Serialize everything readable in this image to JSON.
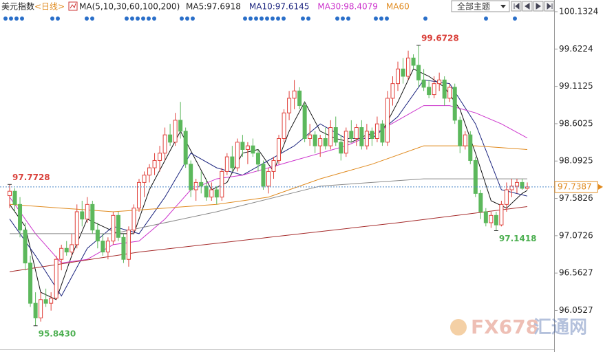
{
  "chart_data": {
    "type": "candlestick",
    "title": "美元指数",
    "period": "<日线>",
    "indicator": "MA(5,10,30,60,100,200)",
    "theme_select": "全部主题",
    "watermark": [
      "FX678",
      "汇通网"
    ],
    "ylim": [
      95.522,
      100.292
    ],
    "yticks": [
      100.1324,
      99.6224,
      99.1125,
      98.6025,
      98.0925,
      97.5826,
      97.0726,
      96.5627,
      96.0527
    ],
    "up_color": "#e0403a",
    "down_color": "#5cb85c",
    "current_price": 97.7387,
    "annotations": [
      {
        "value": 99.6728,
        "field": "high",
        "color": "#d9413b"
      },
      {
        "value": 97.7728,
        "field": "high",
        "color": "#d9413b"
      },
      {
        "value": 97.1418,
        "field": "low",
        "color": "#4caf50"
      },
      {
        "value": 95.843,
        "label": "95.8430",
        "field": "low",
        "color": "#4caf50"
      }
    ],
    "candles": [
      [
        97.62,
        97.7728,
        97.45,
        97.68
      ],
      [
        97.68,
        97.72,
        97.4,
        97.5
      ],
      [
        97.5,
        97.6,
        97.05,
        97.15
      ],
      [
        97.15,
        97.25,
        96.6,
        96.7
      ],
      [
        96.7,
        96.8,
        96.1,
        96.15
      ],
      [
        96.15,
        96.3,
        95.843,
        95.95
      ],
      [
        95.95,
        96.3,
        95.9,
        96.2
      ],
      [
        96.2,
        96.35,
        96.1,
        96.15
      ],
      [
        96.15,
        96.3,
        96.05,
        96.22
      ],
      [
        96.22,
        96.8,
        96.2,
        96.75
      ],
      [
        96.75,
        96.95,
        96.6,
        96.9
      ],
      [
        96.9,
        97.0,
        96.8,
        96.85
      ],
      [
        96.85,
        97.1,
        96.8,
        96.95
      ],
      [
        96.95,
        97.5,
        96.9,
        97.4
      ],
      [
        97.4,
        97.55,
        97.2,
        97.3
      ],
      [
        97.3,
        97.6,
        97.25,
        97.5
      ],
      [
        97.5,
        97.55,
        97.1,
        97.15
      ],
      [
        97.15,
        97.25,
        96.9,
        97.0
      ],
      [
        97.0,
        97.1,
        96.8,
        96.85
      ],
      [
        96.85,
        97.05,
        96.75,
        97.0
      ],
      [
        97.0,
        97.4,
        96.95,
        97.35
      ],
      [
        97.35,
        97.4,
        97.0,
        97.05
      ],
      [
        97.05,
        97.1,
        96.7,
        96.75
      ],
      [
        96.75,
        97.2,
        96.65,
        97.15
      ],
      [
        97.15,
        97.5,
        97.1,
        97.45
      ],
      [
        97.45,
        97.85,
        97.4,
        97.8
      ],
      [
        97.8,
        97.95,
        97.6,
        97.9
      ],
      [
        97.9,
        98.05,
        97.8,
        98.0
      ],
      [
        98.0,
        98.2,
        97.9,
        98.1
      ],
      [
        98.1,
        98.3,
        97.95,
        98.2
      ],
      [
        98.2,
        98.55,
        98.1,
        98.45
      ],
      [
        98.45,
        98.6,
        98.3,
        98.35
      ],
      [
        98.35,
        98.75,
        98.3,
        98.65
      ],
      [
        98.65,
        98.9,
        98.4,
        98.5
      ],
      [
        98.5,
        98.55,
        98.0,
        98.05
      ],
      [
        98.05,
        98.1,
        97.6,
        97.7
      ],
      [
        97.7,
        97.85,
        97.55,
        97.8
      ],
      [
        97.8,
        97.95,
        97.65,
        97.75
      ],
      [
        97.75,
        97.85,
        97.55,
        97.6
      ],
      [
        97.6,
        97.8,
        97.55,
        97.7
      ],
      [
        97.7,
        97.75,
        97.5,
        97.6
      ],
      [
        97.6,
        98.0,
        97.55,
        97.95
      ],
      [
        97.95,
        98.2,
        97.9,
        98.15
      ],
      [
        98.15,
        98.3,
        97.95,
        98.0
      ],
      [
        98.0,
        98.4,
        97.95,
        98.35
      ],
      [
        98.35,
        98.45,
        98.15,
        98.25
      ],
      [
        98.25,
        98.35,
        98.05,
        98.3
      ],
      [
        98.3,
        98.4,
        98.15,
        98.2
      ],
      [
        98.2,
        98.25,
        97.95,
        98.05
      ],
      [
        98.05,
        98.1,
        97.7,
        97.75
      ],
      [
        97.75,
        98.0,
        97.65,
        97.95
      ],
      [
        97.95,
        98.15,
        97.85,
        98.1
      ],
      [
        98.1,
        98.45,
        98.05,
        98.4
      ],
      [
        98.4,
        98.8,
        98.35,
        98.75
      ],
      [
        98.75,
        99.05,
        98.65,
        98.95
      ],
      [
        98.95,
        99.2,
        98.8,
        99.05
      ],
      [
        99.05,
        99.1,
        98.8,
        98.85
      ],
      [
        98.85,
        98.9,
        98.35,
        98.4
      ],
      [
        98.4,
        98.6,
        98.3,
        98.45
      ],
      [
        98.45,
        98.5,
        98.2,
        98.3
      ],
      [
        98.3,
        98.45,
        98.15,
        98.4
      ],
      [
        98.4,
        98.55,
        98.25,
        98.3
      ],
      [
        98.3,
        98.65,
        98.25,
        98.55
      ],
      [
        98.55,
        98.7,
        98.3,
        98.35
      ],
      [
        98.35,
        98.45,
        98.1,
        98.2
      ],
      [
        98.2,
        98.55,
        98.15,
        98.5
      ],
      [
        98.5,
        98.65,
        98.35,
        98.4
      ],
      [
        98.4,
        98.6,
        98.3,
        98.55
      ],
      [
        98.55,
        98.65,
        98.25,
        98.3
      ],
      [
        98.3,
        98.6,
        98.25,
        98.5
      ],
      [
        98.5,
        98.55,
        98.3,
        98.4
      ],
      [
        98.4,
        98.7,
        98.35,
        98.6
      ],
      [
        98.6,
        98.65,
        98.3,
        98.35
      ],
      [
        98.35,
        99.05,
        98.3,
        98.95
      ],
      [
        98.95,
        99.25,
        98.85,
        99.15
      ],
      [
        99.15,
        99.45,
        99.05,
        99.35
      ],
      [
        99.35,
        99.5,
        99.15,
        99.25
      ],
      [
        99.25,
        99.6,
        99.2,
        99.5
      ],
      [
        99.5,
        99.55,
        99.35,
        99.4
      ],
      [
        99.4,
        99.6728,
        99.1,
        99.2
      ],
      [
        99.2,
        99.35,
        99.05,
        99.1
      ],
      [
        99.1,
        99.2,
        98.95,
        99.0
      ],
      [
        99.0,
        99.25,
        98.95,
        99.15
      ],
      [
        99.15,
        99.3,
        99.05,
        99.2
      ],
      [
        99.2,
        99.25,
        98.85,
        98.95
      ],
      [
        98.95,
        99.15,
        98.9,
        99.1
      ],
      [
        99.1,
        99.15,
        98.6,
        98.65
      ],
      [
        98.65,
        98.7,
        98.2,
        98.3
      ],
      [
        98.3,
        98.5,
        98.25,
        98.45
      ],
      [
        98.45,
        98.5,
        98.05,
        98.1
      ],
      [
        98.1,
        98.15,
        97.6,
        97.65
      ],
      [
        97.65,
        97.7,
        97.3,
        97.4
      ],
      [
        97.4,
        97.45,
        97.2,
        97.25
      ],
      [
        97.25,
        97.4,
        97.18,
        97.35
      ],
      [
        97.35,
        97.4,
        97.1418,
        97.22
      ],
      [
        97.22,
        97.55,
        97.2,
        97.5
      ],
      [
        97.5,
        97.8,
        97.4,
        97.7
      ],
      [
        97.7,
        97.85,
        97.6,
        97.75
      ],
      [
        97.75,
        97.85,
        97.65,
        97.8
      ],
      [
        97.8,
        97.85,
        97.7,
        97.72
      ],
      [
        97.72,
        97.8,
        97.7,
        97.7387
      ]
    ],
    "ma": [
      {
        "name": "MA5",
        "legend": "MA5:97.6918",
        "color": "#111111",
        "x": [
          0,
          3,
          6,
          9,
          12,
          15,
          18,
          21,
          24,
          27,
          30,
          33,
          36,
          39,
          42,
          45,
          48,
          51,
          54,
          57,
          60,
          63,
          66,
          69,
          72,
          75,
          78,
          81,
          84,
          87,
          90,
          93,
          96,
          99,
          100
        ],
        "values": [
          97.5,
          97.2,
          96.3,
          96.2,
          96.8,
          97.3,
          97.2,
          97.1,
          97.1,
          97.7,
          98.1,
          98.5,
          98.1,
          97.7,
          97.8,
          98.2,
          98.25,
          97.95,
          98.5,
          98.9,
          98.5,
          98.4,
          98.35,
          98.45,
          98.5,
          98.9,
          99.35,
          99.25,
          99.1,
          98.8,
          98.2,
          97.55,
          97.45,
          97.65,
          97.6918
        ]
      },
      {
        "name": "MA10",
        "legend": "MA10:97.6145",
        "color": "#1a237e",
        "x": [
          0,
          5,
          10,
          15,
          20,
          25,
          30,
          35,
          40,
          45,
          50,
          55,
          60,
          65,
          70,
          75,
          80,
          85,
          90,
          95,
          100
        ],
        "values": [
          97.3,
          96.8,
          96.25,
          96.9,
          97.2,
          97.1,
          97.6,
          98.2,
          98.0,
          97.9,
          98.1,
          98.3,
          98.6,
          98.4,
          98.4,
          98.7,
          99.2,
          99.15,
          98.6,
          97.7,
          97.6145
        ]
      },
      {
        "name": "MA30",
        "legend": "MA30:98.4079",
        "color": "#cc33cc",
        "x": [
          0,
          5,
          10,
          15,
          20,
          25,
          30,
          35,
          40,
          45,
          50,
          55,
          60,
          65,
          70,
          75,
          80,
          85,
          90,
          95,
          100
        ],
        "values": [
          97.6,
          97.1,
          96.7,
          96.75,
          96.95,
          97.0,
          97.3,
          97.7,
          97.85,
          97.9,
          98.0,
          98.1,
          98.2,
          98.3,
          98.45,
          98.65,
          98.85,
          98.85,
          98.75,
          98.6,
          98.4079
        ]
      },
      {
        "name": "MA60",
        "legend": "MA60",
        "color": "#e08a1e",
        "x": [
          0,
          10,
          20,
          30,
          40,
          50,
          60,
          70,
          80,
          90,
          100
        ],
        "values": [
          97.5,
          97.45,
          97.4,
          97.45,
          97.5,
          97.6,
          97.85,
          98.05,
          98.3,
          98.3,
          98.25
        ]
      },
      {
        "name": "MA100",
        "color": "#888888",
        "x": [
          0,
          20,
          40,
          60,
          80,
          100
        ],
        "values": [
          97.1,
          97.1,
          97.4,
          97.75,
          97.85,
          97.85
        ]
      },
      {
        "name": "MA200",
        "color": "#a52a2a",
        "x": [
          0,
          25,
          50,
          75,
          100
        ],
        "values": [
          96.58,
          96.85,
          97.05,
          97.25,
          97.47
        ]
      }
    ]
  }
}
